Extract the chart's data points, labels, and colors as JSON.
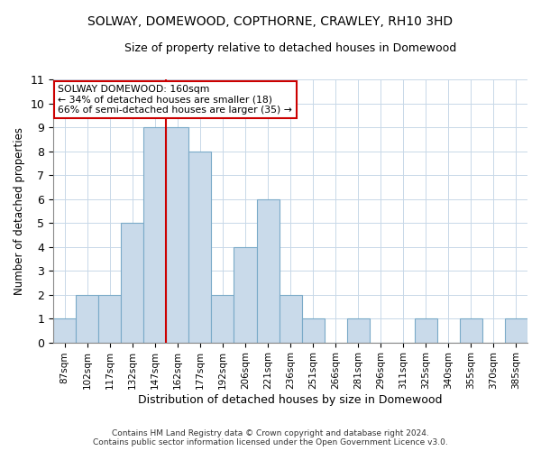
{
  "title": "SOLWAY, DOMEWOOD, COPTHORNE, CRAWLEY, RH10 3HD",
  "subtitle": "Size of property relative to detached houses in Domewood",
  "xlabel": "Distribution of detached houses by size in Domewood",
  "ylabel": "Number of detached properties",
  "bin_labels": [
    "87sqm",
    "102sqm",
    "117sqm",
    "132sqm",
    "147sqm",
    "162sqm",
    "177sqm",
    "192sqm",
    "206sqm",
    "221sqm",
    "236sqm",
    "251sqm",
    "266sqm",
    "281sqm",
    "296sqm",
    "311sqm",
    "325sqm",
    "340sqm",
    "355sqm",
    "370sqm",
    "385sqm"
  ],
  "values": [
    1,
    2,
    2,
    5,
    9,
    9,
    8,
    2,
    4,
    6,
    2,
    1,
    0,
    1,
    0,
    0,
    1,
    0,
    1,
    0,
    1
  ],
  "bar_color": "#c9daea",
  "bar_edge_color": "#7aaac8",
  "annotation_text_line1": "SOLWAY DOMEWOOD: 160sqm",
  "annotation_text_line2": "← 34% of detached houses are smaller (18)",
  "annotation_text_line3": "66% of semi-detached houses are larger (35) →",
  "annotation_box_color": "#ffffff",
  "annotation_box_edge_color": "#cc0000",
  "redline_x": 4.5,
  "ylim": [
    0,
    11
  ],
  "yticks": [
    0,
    1,
    2,
    3,
    4,
    5,
    6,
    7,
    8,
    9,
    10,
    11
  ],
  "footer_line1": "Contains HM Land Registry data © Crown copyright and database right 2024.",
  "footer_line2": "Contains public sector information licensed under the Open Government Licence v3.0.",
  "background_color": "#ffffff",
  "grid_color": "#c8d8e8"
}
